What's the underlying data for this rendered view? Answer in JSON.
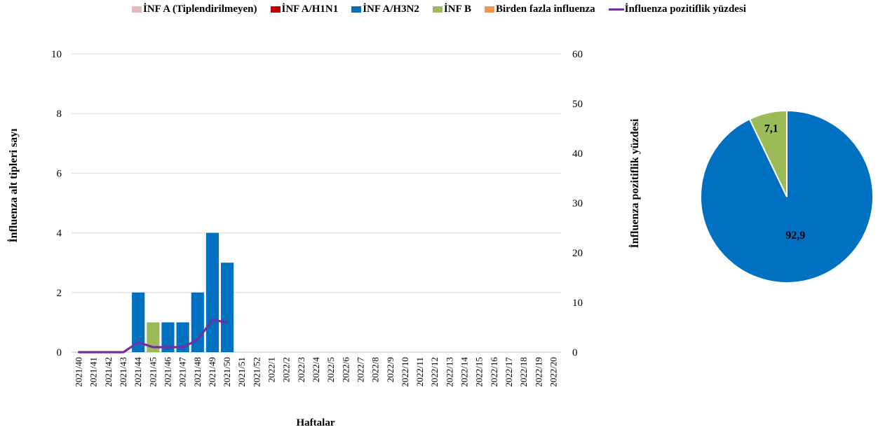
{
  "chart_data": {
    "type": "bar",
    "xlabel": "Haftalar",
    "ylabel": "İnfluenza alt tipleri sayı",
    "y2label": "İnfluenza pozitiflik yüzdesi",
    "ylim": [
      0,
      10
    ],
    "y2lim": [
      0,
      60
    ],
    "yticks": [
      0,
      2,
      4,
      6,
      8,
      10
    ],
    "y2ticks": [
      0,
      10,
      20,
      30,
      40,
      50,
      60
    ],
    "grid": true,
    "legend_position": "top",
    "categories": [
      "2021/40",
      "2021/41",
      "2021/42",
      "2021/43",
      "2021/44",
      "2021/45",
      "2021/46",
      "2021/47",
      "2021/48",
      "2021/49",
      "2021/50",
      "2021/51",
      "2021/52",
      "2022/1",
      "2022/2",
      "2022/3",
      "2022/4",
      "2022/5",
      "2022/6",
      "2022/7",
      "2022/8",
      "2022/9",
      "2022/10",
      "2022/11",
      "2022/12",
      "2022/13",
      "2022/14",
      "2022/15",
      "2022/16",
      "2022/17",
      "2022/18",
      "2022/19",
      "2022/20"
    ],
    "series": [
      {
        "name": "İNF A (Tiplendirilmeyen)",
        "color": "#e6b8b7",
        "kind": "bar",
        "values": [
          0,
          0,
          0,
          0,
          0,
          0,
          0,
          0,
          0,
          0,
          0,
          null,
          null,
          null,
          null,
          null,
          null,
          null,
          null,
          null,
          null,
          null,
          null,
          null,
          null,
          null,
          null,
          null,
          null,
          null,
          null,
          null,
          null
        ]
      },
      {
        "name": "İNF A/H1N1",
        "color": "#c00000",
        "kind": "bar",
        "values": [
          0,
          0,
          0,
          0,
          0,
          0,
          0,
          0,
          0,
          0,
          0,
          null,
          null,
          null,
          null,
          null,
          null,
          null,
          null,
          null,
          null,
          null,
          null,
          null,
          null,
          null,
          null,
          null,
          null,
          null,
          null,
          null,
          null
        ]
      },
      {
        "name": "İNF A/H3N2",
        "color": "#0070c0",
        "kind": "bar",
        "values": [
          0,
          0,
          0,
          0,
          2,
          0,
          1,
          1,
          2,
          4,
          3,
          null,
          null,
          null,
          null,
          null,
          null,
          null,
          null,
          null,
          null,
          null,
          null,
          null,
          null,
          null,
          null,
          null,
          null,
          null,
          null,
          null,
          null
        ]
      },
      {
        "name": "İNF B",
        "color": "#9bbb59",
        "kind": "bar",
        "values": [
          0,
          0,
          0,
          0,
          0,
          1,
          0,
          0,
          0,
          0,
          0,
          null,
          null,
          null,
          null,
          null,
          null,
          null,
          null,
          null,
          null,
          null,
          null,
          null,
          null,
          null,
          null,
          null,
          null,
          null,
          null,
          null,
          null
        ]
      },
      {
        "name": "Birden fazla influenza",
        "color": "#f79646",
        "kind": "bar",
        "values": [
          0,
          0,
          0,
          0,
          0,
          0,
          0,
          0,
          0,
          0,
          0,
          null,
          null,
          null,
          null,
          null,
          null,
          null,
          null,
          null,
          null,
          null,
          null,
          null,
          null,
          null,
          null,
          null,
          null,
          null,
          null,
          null,
          null
        ]
      },
      {
        "name": "İnfluenza pozitiflik yüzdesi",
        "color": "#7030a0",
        "kind": "line",
        "axis": "right",
        "values": [
          0,
          0,
          0,
          0,
          2,
          1,
          1,
          1,
          2.5,
          6.5,
          6,
          null,
          null,
          null,
          null,
          null,
          null,
          null,
          null,
          null,
          null,
          null,
          null,
          null,
          null,
          null,
          null,
          null,
          null,
          null,
          null,
          null,
          null
        ]
      }
    ],
    "pie": {
      "type": "pie",
      "slices": [
        {
          "label": "İNF A/H3N2",
          "value": 92.9,
          "display": "92,9",
          "color": "#0070c0"
        },
        {
          "label": "İNF B",
          "value": 7.1,
          "display": "7,1",
          "color": "#9bbb59"
        }
      ]
    }
  }
}
